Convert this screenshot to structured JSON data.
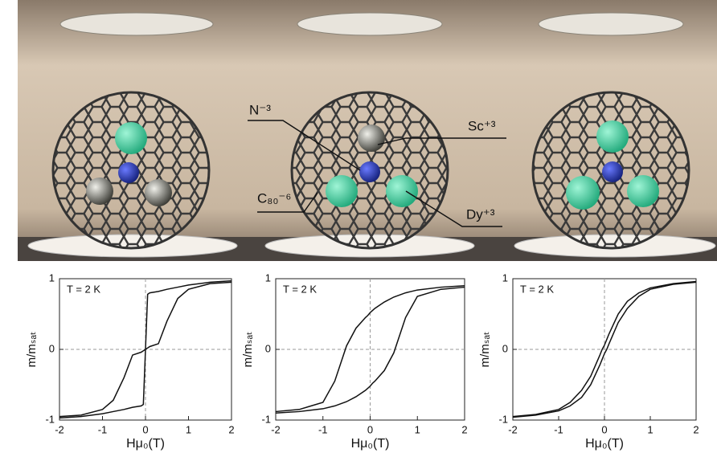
{
  "illustration": {
    "labels": [
      "N⁻³",
      "Sc⁺³",
      "C₈₀⁻⁶",
      "Dy⁺³"
    ]
  },
  "chart_data": [
    {
      "type": "line",
      "annotation": "T = 2 K",
      "x_label": "Hμ₀(T)",
      "y_label": "m/mₛₐₜ",
      "x": [
        -2,
        -1.5,
        -1,
        -0.75,
        -0.5,
        -0.3,
        -0.1,
        -0.05,
        0,
        0.05,
        0.1,
        0.3,
        0.5,
        0.75,
        1,
        1.5,
        2
      ],
      "series": [
        {
          "color": "#111111",
          "values": [
            -0.95,
            -0.93,
            -0.85,
            -0.72,
            -0.4,
            -0.08,
            -0.04,
            -0.02,
            0.0,
            0.78,
            0.8,
            0.82,
            0.85,
            0.88,
            0.91,
            0.95,
            0.97
          ]
        },
        {
          "color": "#111111",
          "values": [
            -0.97,
            -0.95,
            -0.91,
            -0.88,
            -0.85,
            -0.82,
            -0.8,
            -0.78,
            0.0,
            0.02,
            0.04,
            0.08,
            0.4,
            0.72,
            0.85,
            0.93,
            0.95
          ]
        }
      ],
      "xlim": [
        -2,
        2
      ],
      "xticks": [
        -2,
        -1,
        0,
        1,
        2
      ],
      "ylim": [
        -1,
        1
      ],
      "yticks": [
        -1,
        0,
        1
      ],
      "zero_lines": true
    },
    {
      "type": "line",
      "annotation": "T = 2 K",
      "x_label": "Hμ₀(T)",
      "y_label": "m/mₛₐₜ",
      "x": [
        -2,
        -1.5,
        -1,
        -0.75,
        -0.5,
        -0.3,
        -0.1,
        -0.05,
        0,
        0.05,
        0.1,
        0.3,
        0.5,
        0.75,
        1,
        1.5,
        2
      ],
      "series": [
        {
          "color": "#111111",
          "values": [
            -0.88,
            -0.85,
            -0.75,
            -0.45,
            0.05,
            0.3,
            0.45,
            0.48,
            0.52,
            0.55,
            0.58,
            0.67,
            0.74,
            0.8,
            0.84,
            0.88,
            0.9
          ]
        },
        {
          "color": "#111111",
          "values": [
            -0.9,
            -0.88,
            -0.84,
            -0.8,
            -0.74,
            -0.67,
            -0.58,
            -0.55,
            -0.52,
            -0.48,
            -0.45,
            -0.3,
            -0.05,
            0.45,
            0.75,
            0.85,
            0.88
          ]
        }
      ],
      "xlim": [
        -2,
        2
      ],
      "xticks": [
        -2,
        -1,
        0,
        1,
        2
      ],
      "ylim": [
        -1,
        1
      ],
      "yticks": [
        -1,
        0,
        1
      ],
      "zero_lines": true
    },
    {
      "type": "line",
      "annotation": "T = 2 K",
      "x_label": "Hμ₀(T)",
      "y_label": "m/mₛₐₜ",
      "x": [
        -2,
        -1.5,
        -1,
        -0.75,
        -0.5,
        -0.3,
        -0.1,
        -0.05,
        0,
        0.05,
        0.1,
        0.3,
        0.5,
        0.75,
        1,
        1.5,
        2
      ],
      "series": [
        {
          "color": "#111111",
          "values": [
            -0.95,
            -0.92,
            -0.85,
            -0.75,
            -0.58,
            -0.38,
            -0.08,
            0.0,
            0.06,
            0.14,
            0.22,
            0.5,
            0.68,
            0.8,
            0.87,
            0.93,
            0.96
          ]
        },
        {
          "color": "#111111",
          "values": [
            -0.96,
            -0.93,
            -0.87,
            -0.8,
            -0.68,
            -0.5,
            -0.22,
            -0.14,
            -0.06,
            0.0,
            0.08,
            0.38,
            0.58,
            0.75,
            0.85,
            0.92,
            0.95
          ]
        }
      ],
      "xlim": [
        -2,
        2
      ],
      "xticks": [
        -2,
        -1,
        0,
        1,
        2
      ],
      "ylim": [
        -1,
        1
      ],
      "yticks": [
        -1,
        0,
        1
      ],
      "zero_lines": true
    }
  ]
}
